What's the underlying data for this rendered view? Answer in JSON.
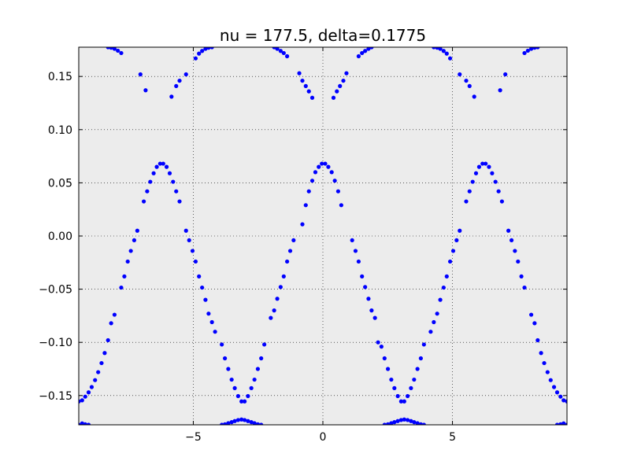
{
  "chart_data": {
    "type": "scatter",
    "title": "nu = 177.5, delta=0.1775",
    "xlabel": "",
    "ylabel": "",
    "xlim": [
      -9.42,
      9.42
    ],
    "ylim": [
      -0.1775,
      0.1775
    ],
    "xticks": [
      -5,
      0,
      5
    ],
    "xtick_labels": [
      "−5",
      "0",
      "5"
    ],
    "yticks": [
      -0.15,
      -0.1,
      -0.05,
      0.0,
      0.05,
      0.1,
      0.15
    ],
    "ytick_labels": [
      "−0.15",
      "−0.10",
      "−0.05",
      "0.00",
      "0.05",
      "0.10",
      "0.15"
    ],
    "grid": true,
    "legend": "none",
    "background_color": "#ececec",
    "marker_color": "#0000ff",
    "series": [
      {
        "values": [
          [
            -9.42,
            -0.1555
          ],
          [
            -9.29,
            -0.1545
          ],
          [
            -9.17,
            -0.151
          ],
          [
            -9.04,
            -0.147
          ],
          [
            -8.92,
            -0.142
          ],
          [
            -8.79,
            -0.1355
          ],
          [
            -8.67,
            -0.128
          ],
          [
            -8.54,
            -0.1195
          ],
          [
            -8.42,
            -0.11
          ],
          [
            -8.29,
            -0.098
          ],
          [
            -8.17,
            -0.082
          ],
          [
            -8.04,
            -0.074
          ],
          [
            -7.78,
            -0.0485
          ],
          [
            -7.66,
            -0.038
          ],
          [
            -7.53,
            -0.024
          ],
          [
            -7.41,
            -0.014
          ],
          [
            -7.28,
            -0.004
          ],
          [
            -7.16,
            0.005
          ],
          [
            -6.91,
            0.0325
          ],
          [
            -6.78,
            0.042
          ],
          [
            -6.66,
            0.051
          ],
          [
            -6.53,
            0.059
          ],
          [
            -6.41,
            0.065
          ],
          [
            -6.28,
            0.068
          ],
          [
            -6.16,
            0.068
          ],
          [
            -6.03,
            0.065
          ],
          [
            -5.91,
            0.059
          ],
          [
            -5.78,
            0.051
          ],
          [
            -5.66,
            0.042
          ],
          [
            -5.53,
            0.0325
          ],
          [
            -5.28,
            0.005
          ],
          [
            -5.16,
            -0.004
          ],
          [
            -5.03,
            -0.014
          ],
          [
            -4.91,
            -0.024
          ],
          [
            -4.78,
            -0.038
          ],
          [
            -4.66,
            -0.0485
          ],
          [
            -4.53,
            -0.06
          ],
          [
            -4.41,
            -0.073
          ],
          [
            -4.28,
            -0.081
          ],
          [
            -4.16,
            -0.09
          ],
          [
            -3.9,
            -0.102
          ],
          [
            -3.78,
            -0.115
          ],
          [
            -3.65,
            -0.125
          ],
          [
            -3.52,
            -0.135
          ],
          [
            -3.4,
            -0.143
          ],
          [
            -3.27,
            -0.1505
          ],
          [
            -3.14,
            -0.1555
          ],
          [
            -3.02,
            -0.1555
          ],
          [
            -2.89,
            -0.1505
          ],
          [
            -2.76,
            -0.143
          ],
          [
            -2.64,
            -0.135
          ],
          [
            -2.51,
            -0.125
          ],
          [
            -2.38,
            -0.115
          ],
          [
            -2.26,
            -0.102
          ],
          [
            -2.01,
            -0.077
          ],
          [
            -1.88,
            -0.07
          ],
          [
            -1.76,
            -0.059
          ],
          [
            -1.63,
            -0.048
          ],
          [
            -1.51,
            -0.038
          ],
          [
            -1.38,
            -0.024
          ],
          [
            -1.26,
            -0.014
          ],
          [
            -1.13,
            -0.004
          ],
          [
            -0.79,
            0.011
          ],
          [
            -0.66,
            0.029
          ],
          [
            -0.54,
            0.042
          ],
          [
            -0.41,
            0.052
          ],
          [
            -0.29,
            0.06
          ],
          [
            -0.16,
            0.065
          ],
          [
            -0.04,
            0.068
          ],
          [
            0.09,
            0.068
          ],
          [
            0.21,
            0.065
          ],
          [
            0.34,
            0.06
          ],
          [
            0.46,
            0.052
          ],
          [
            0.59,
            0.042
          ],
          [
            0.71,
            0.029
          ],
          [
            1.13,
            -0.004
          ],
          [
            1.26,
            -0.014
          ],
          [
            1.38,
            -0.024
          ],
          [
            1.51,
            -0.038
          ],
          [
            1.63,
            -0.048
          ],
          [
            1.76,
            -0.059
          ],
          [
            1.88,
            -0.07
          ],
          [
            2.01,
            -0.077
          ],
          [
            2.13,
            -0.1
          ],
          [
            2.26,
            -0.104
          ],
          [
            2.38,
            -0.115
          ],
          [
            2.51,
            -0.125
          ],
          [
            2.64,
            -0.135
          ],
          [
            2.76,
            -0.143
          ],
          [
            2.89,
            -0.1505
          ],
          [
            3.02,
            -0.1555
          ],
          [
            3.14,
            -0.1555
          ],
          [
            3.27,
            -0.1505
          ],
          [
            3.4,
            -0.143
          ],
          [
            3.52,
            -0.135
          ],
          [
            3.65,
            -0.125
          ],
          [
            3.78,
            -0.115
          ],
          [
            3.9,
            -0.102
          ],
          [
            4.16,
            -0.09
          ],
          [
            4.28,
            -0.081
          ],
          [
            4.41,
            -0.073
          ],
          [
            4.53,
            -0.06
          ],
          [
            4.66,
            -0.0485
          ],
          [
            4.78,
            -0.038
          ],
          [
            4.91,
            -0.024
          ],
          [
            5.03,
            -0.014
          ],
          [
            5.16,
            -0.004
          ],
          [
            5.28,
            0.005
          ],
          [
            5.53,
            0.0325
          ],
          [
            5.66,
            0.042
          ],
          [
            5.78,
            0.051
          ],
          [
            5.91,
            0.059
          ],
          [
            6.03,
            0.065
          ],
          [
            6.16,
            0.068
          ],
          [
            6.28,
            0.068
          ],
          [
            6.41,
            0.065
          ],
          [
            6.53,
            0.059
          ],
          [
            6.66,
            0.051
          ],
          [
            6.78,
            0.042
          ],
          [
            6.91,
            0.0325
          ],
          [
            7.16,
            0.005
          ],
          [
            7.28,
            -0.004
          ],
          [
            7.41,
            -0.014
          ],
          [
            7.53,
            -0.024
          ],
          [
            7.66,
            -0.038
          ],
          [
            7.78,
            -0.0485
          ],
          [
            8.04,
            -0.074
          ],
          [
            8.17,
            -0.082
          ],
          [
            8.29,
            -0.098
          ],
          [
            8.42,
            -0.11
          ],
          [
            8.54,
            -0.1195
          ],
          [
            8.67,
            -0.128
          ],
          [
            8.79,
            -0.1355
          ],
          [
            8.92,
            -0.142
          ],
          [
            9.04,
            -0.147
          ],
          [
            9.17,
            -0.151
          ],
          [
            9.29,
            -0.1545
          ],
          [
            9.42,
            -0.1555
          ],
          [
            -9.42,
            -0.1775
          ],
          [
            -9.29,
            -0.1762
          ],
          [
            -9.17,
            -0.177
          ],
          [
            -9.04,
            -0.1775
          ],
          [
            -3.9,
            -0.1775
          ],
          [
            -3.78,
            -0.177
          ],
          [
            -3.65,
            -0.176
          ],
          [
            -3.52,
            -0.175
          ],
          [
            -3.4,
            -0.174
          ],
          [
            -3.27,
            -0.173
          ],
          [
            -3.14,
            -0.1725
          ],
          [
            -3.02,
            -0.173
          ],
          [
            -2.89,
            -0.174
          ],
          [
            -2.76,
            -0.175
          ],
          [
            -2.64,
            -0.176
          ],
          [
            -2.51,
            -0.177
          ],
          [
            -2.38,
            -0.1775
          ],
          [
            2.38,
            -0.1775
          ],
          [
            2.51,
            -0.177
          ],
          [
            2.64,
            -0.176
          ],
          [
            2.76,
            -0.175
          ],
          [
            2.89,
            -0.174
          ],
          [
            3.02,
            -0.173
          ],
          [
            3.14,
            -0.1725
          ],
          [
            3.27,
            -0.173
          ],
          [
            3.4,
            -0.174
          ],
          [
            3.52,
            -0.175
          ],
          [
            3.65,
            -0.176
          ],
          [
            3.78,
            -0.177
          ],
          [
            3.9,
            -0.1775
          ],
          [
            9.04,
            -0.1775
          ],
          [
            9.17,
            -0.177
          ],
          [
            9.29,
            -0.1762
          ],
          [
            9.42,
            -0.1775
          ],
          [
            -8.29,
            0.1775
          ],
          [
            -8.17,
            0.177
          ],
          [
            -8.04,
            0.176
          ],
          [
            -7.91,
            0.1742
          ],
          [
            -7.78,
            0.172
          ],
          [
            -7.04,
            0.152
          ],
          [
            -6.84,
            0.137
          ],
          [
            -5.84,
            0.131
          ],
          [
            -5.66,
            0.141
          ],
          [
            -5.53,
            0.146
          ],
          [
            -5.28,
            0.152
          ],
          [
            -4.91,
            0.167
          ],
          [
            -4.78,
            0.1715
          ],
          [
            -4.66,
            0.174
          ],
          [
            -4.53,
            0.176
          ],
          [
            -4.41,
            0.177
          ],
          [
            -4.28,
            0.1775
          ],
          [
            -1.88,
            0.1775
          ],
          [
            -1.76,
            0.176
          ],
          [
            -1.63,
            0.174
          ],
          [
            -1.51,
            0.172
          ],
          [
            -1.38,
            0.169
          ],
          [
            -0.91,
            0.153
          ],
          [
            -0.79,
            0.146
          ],
          [
            -0.66,
            0.141
          ],
          [
            -0.54,
            0.136
          ],
          [
            -0.41,
            0.13
          ],
          [
            0.41,
            0.13
          ],
          [
            0.54,
            0.136
          ],
          [
            0.66,
            0.141
          ],
          [
            0.79,
            0.146
          ],
          [
            0.91,
            0.153
          ],
          [
            1.38,
            0.169
          ],
          [
            1.51,
            0.172
          ],
          [
            1.63,
            0.174
          ],
          [
            1.76,
            0.176
          ],
          [
            1.88,
            0.1775
          ],
          [
            4.28,
            0.1775
          ],
          [
            4.41,
            0.177
          ],
          [
            4.53,
            0.176
          ],
          [
            4.66,
            0.174
          ],
          [
            4.78,
            0.1715
          ],
          [
            4.91,
            0.167
          ],
          [
            5.28,
            0.152
          ],
          [
            5.53,
            0.146
          ],
          [
            5.66,
            0.141
          ],
          [
            5.84,
            0.131
          ],
          [
            6.84,
            0.137
          ],
          [
            7.04,
            0.152
          ],
          [
            7.78,
            0.172
          ],
          [
            7.91,
            0.1742
          ],
          [
            8.04,
            0.176
          ],
          [
            8.17,
            0.177
          ],
          [
            8.29,
            0.1775
          ]
        ]
      }
    ]
  }
}
